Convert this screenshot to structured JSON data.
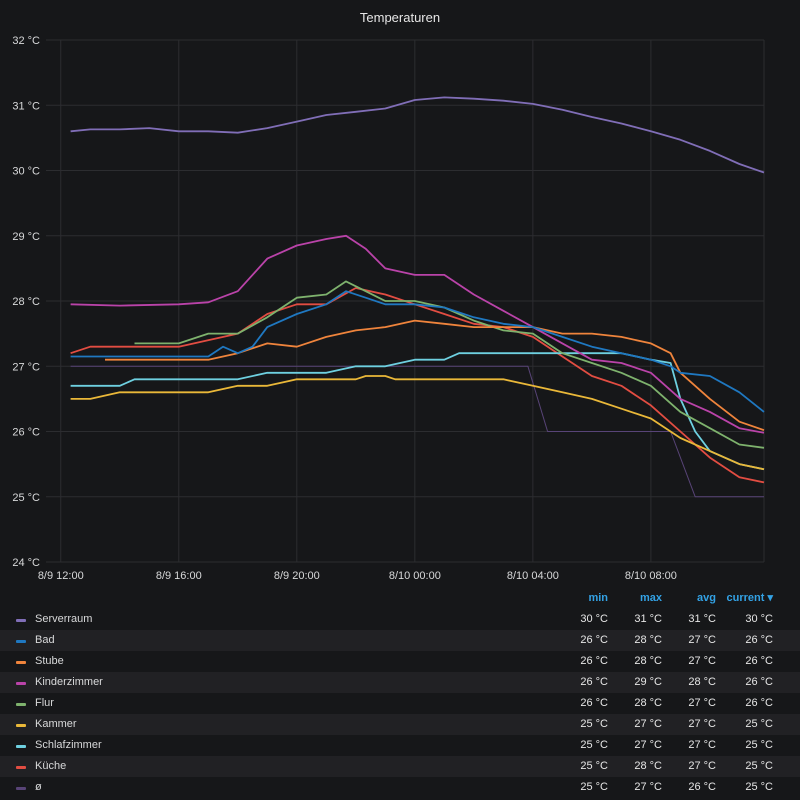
{
  "chart_data": {
    "type": "line",
    "title": "Temperaturen",
    "unit": "°C",
    "x_range": [
      "2023-08-09T11:30",
      "2023-08-10T11:50"
    ],
    "ylim": [
      24,
      32
    ],
    "y_ticks": [
      "24 °C",
      "25 °C",
      "26 °C",
      "27 °C",
      "28 °C",
      "29 °C",
      "30 °C",
      "31 °C",
      "32 °C"
    ],
    "x_ticks": [
      {
        "t": "2023-08-09T12:00",
        "label": "8/9 12:00"
      },
      {
        "t": "2023-08-09T16:00",
        "label": "8/9 16:00"
      },
      {
        "t": "2023-08-09T20:00",
        "label": "8/9 20:00"
      },
      {
        "t": "2023-08-10T00:00",
        "label": "8/10 00:00"
      },
      {
        "t": "2023-08-10T04:00",
        "label": "8/10 04:00"
      },
      {
        "t": "2023-08-10T08:00",
        "label": "8/10 08:00"
      }
    ],
    "grid": true,
    "legend_placement": "bottom-table",
    "legend_columns": [
      "min",
      "max",
      "avg",
      "current ▾"
    ],
    "series": [
      {
        "name": "Serverraum",
        "color": "#806eb7",
        "min": "30 °C",
        "max": "31 °C",
        "avg": "31 °C",
        "current": "30 °C",
        "points": [
          [
            "2023-08-09T12:20",
            30.6
          ],
          [
            "2023-08-09T13:00",
            30.63
          ],
          [
            "2023-08-09T14:00",
            30.63
          ],
          [
            "2023-08-09T15:00",
            30.65
          ],
          [
            "2023-08-09T16:00",
            30.6
          ],
          [
            "2023-08-09T17:00",
            30.6
          ],
          [
            "2023-08-09T18:00",
            30.58
          ],
          [
            "2023-08-09T19:00",
            30.65
          ],
          [
            "2023-08-09T20:00",
            30.75
          ],
          [
            "2023-08-09T21:00",
            30.85
          ],
          [
            "2023-08-09T22:00",
            30.9
          ],
          [
            "2023-08-09T23:00",
            30.95
          ],
          [
            "2023-08-10T00:00",
            31.08
          ],
          [
            "2023-08-10T01:00",
            31.12
          ],
          [
            "2023-08-10T02:00",
            31.1
          ],
          [
            "2023-08-10T03:00",
            31.07
          ],
          [
            "2023-08-10T04:00",
            31.02
          ],
          [
            "2023-08-10T05:00",
            30.93
          ],
          [
            "2023-08-10T06:00",
            30.82
          ],
          [
            "2023-08-10T07:00",
            30.72
          ],
          [
            "2023-08-10T08:00",
            30.6
          ],
          [
            "2023-08-10T09:00",
            30.47
          ],
          [
            "2023-08-10T10:00",
            30.3
          ],
          [
            "2023-08-10T11:00",
            30.1
          ],
          [
            "2023-08-10T11:50",
            29.97
          ]
        ]
      },
      {
        "name": "Bad",
        "color": "#1f78c1",
        "min": "26 °C",
        "max": "28 °C",
        "avg": "27 °C",
        "current": "26 °C",
        "points": [
          [
            "2023-08-09T12:20",
            27.15
          ],
          [
            "2023-08-09T14:00",
            27.15
          ],
          [
            "2023-08-09T17:00",
            27.15
          ],
          [
            "2023-08-09T17:30",
            27.3
          ],
          [
            "2023-08-09T18:00",
            27.2
          ],
          [
            "2023-08-09T18:30",
            27.3
          ],
          [
            "2023-08-09T19:00",
            27.6
          ],
          [
            "2023-08-09T20:00",
            27.8
          ],
          [
            "2023-08-09T21:00",
            27.95
          ],
          [
            "2023-08-09T21:40",
            28.15
          ],
          [
            "2023-08-09T22:20",
            28.05
          ],
          [
            "2023-08-09T23:00",
            27.95
          ],
          [
            "2023-08-10T00:00",
            27.95
          ],
          [
            "2023-08-10T01:00",
            27.9
          ],
          [
            "2023-08-10T02:00",
            27.75
          ],
          [
            "2023-08-10T03:00",
            27.65
          ],
          [
            "2023-08-10T04:00",
            27.6
          ],
          [
            "2023-08-10T05:00",
            27.45
          ],
          [
            "2023-08-10T06:00",
            27.3
          ],
          [
            "2023-08-10T07:00",
            27.2
          ],
          [
            "2023-08-10T08:00",
            27.1
          ],
          [
            "2023-08-10T08:40",
            27.0
          ],
          [
            "2023-08-10T09:00",
            26.9
          ],
          [
            "2023-08-10T10:00",
            26.85
          ],
          [
            "2023-08-10T11:00",
            26.6
          ],
          [
            "2023-08-10T11:50",
            26.3
          ]
        ]
      },
      {
        "name": "Stube",
        "color": "#ef843c",
        "min": "26 °C",
        "max": "28 °C",
        "avg": "27 °C",
        "current": "26 °C",
        "points": [
          [
            "2023-08-09T13:30",
            27.1
          ],
          [
            "2023-08-09T17:00",
            27.1
          ],
          [
            "2023-08-09T18:00",
            27.2
          ],
          [
            "2023-08-09T19:00",
            27.35
          ],
          [
            "2023-08-09T20:00",
            27.3
          ],
          [
            "2023-08-09T21:00",
            27.45
          ],
          [
            "2023-08-09T22:00",
            27.55
          ],
          [
            "2023-08-09T23:00",
            27.6
          ],
          [
            "2023-08-10T00:00",
            27.7
          ],
          [
            "2023-08-10T01:00",
            27.65
          ],
          [
            "2023-08-10T02:00",
            27.6
          ],
          [
            "2023-08-10T03:00",
            27.6
          ],
          [
            "2023-08-10T04:00",
            27.6
          ],
          [
            "2023-08-10T05:00",
            27.5
          ],
          [
            "2023-08-10T06:00",
            27.5
          ],
          [
            "2023-08-10T07:00",
            27.45
          ],
          [
            "2023-08-10T08:00",
            27.35
          ],
          [
            "2023-08-10T08:40",
            27.2
          ],
          [
            "2023-08-10T09:00",
            26.9
          ],
          [
            "2023-08-10T10:00",
            26.5
          ],
          [
            "2023-08-10T11:00",
            26.15
          ],
          [
            "2023-08-10T11:50",
            26.02
          ]
        ]
      },
      {
        "name": "Kinderzimmer",
        "color": "#ba43a9",
        "min": "26 °C",
        "max": "29 °C",
        "avg": "28 °C",
        "current": "26 °C",
        "points": [
          [
            "2023-08-09T12:20",
            27.95
          ],
          [
            "2023-08-09T14:00",
            27.93
          ],
          [
            "2023-08-09T16:00",
            27.95
          ],
          [
            "2023-08-09T17:00",
            27.98
          ],
          [
            "2023-08-09T18:00",
            28.15
          ],
          [
            "2023-08-09T19:00",
            28.65
          ],
          [
            "2023-08-09T20:00",
            28.85
          ],
          [
            "2023-08-09T21:00",
            28.95
          ],
          [
            "2023-08-09T21:40",
            29.0
          ],
          [
            "2023-08-09T22:20",
            28.8
          ],
          [
            "2023-08-09T23:00",
            28.5
          ],
          [
            "2023-08-10T00:00",
            28.4
          ],
          [
            "2023-08-10T01:00",
            28.4
          ],
          [
            "2023-08-10T02:00",
            28.1
          ],
          [
            "2023-08-10T03:00",
            27.85
          ],
          [
            "2023-08-10T04:00",
            27.6
          ],
          [
            "2023-08-10T05:00",
            27.35
          ],
          [
            "2023-08-10T06:00",
            27.1
          ],
          [
            "2023-08-10T07:00",
            27.05
          ],
          [
            "2023-08-10T08:00",
            26.9
          ],
          [
            "2023-08-10T09:00",
            26.5
          ],
          [
            "2023-08-10T10:00",
            26.3
          ],
          [
            "2023-08-10T11:00",
            26.05
          ],
          [
            "2023-08-10T11:50",
            25.98
          ]
        ]
      },
      {
        "name": "Flur",
        "color": "#7eb26d",
        "min": "26 °C",
        "max": "28 °C",
        "avg": "27 °C",
        "current": "26 °C",
        "points": [
          [
            "2023-08-09T14:30",
            27.35
          ],
          [
            "2023-08-09T16:00",
            27.35
          ],
          [
            "2023-08-09T17:00",
            27.5
          ],
          [
            "2023-08-09T18:00",
            27.5
          ],
          [
            "2023-08-09T19:00",
            27.75
          ],
          [
            "2023-08-09T20:00",
            28.05
          ],
          [
            "2023-08-09T21:00",
            28.1
          ],
          [
            "2023-08-09T21:40",
            28.3
          ],
          [
            "2023-08-09T22:20",
            28.15
          ],
          [
            "2023-08-09T23:00",
            28.0
          ],
          [
            "2023-08-10T00:00",
            28.0
          ],
          [
            "2023-08-10T01:00",
            27.9
          ],
          [
            "2023-08-10T02:00",
            27.7
          ],
          [
            "2023-08-10T03:00",
            27.55
          ],
          [
            "2023-08-10T04:00",
            27.5
          ],
          [
            "2023-08-10T05:00",
            27.2
          ],
          [
            "2023-08-10T06:00",
            27.05
          ],
          [
            "2023-08-10T07:00",
            26.9
          ],
          [
            "2023-08-10T08:00",
            26.7
          ],
          [
            "2023-08-10T09:00",
            26.3
          ],
          [
            "2023-08-10T10:00",
            26.05
          ],
          [
            "2023-08-10T11:00",
            25.8
          ],
          [
            "2023-08-10T11:50",
            25.75
          ]
        ]
      },
      {
        "name": "Kammer",
        "color": "#eab839",
        "min": "25 °C",
        "max": "27 °C",
        "avg": "27 °C",
        "current": "25 °C",
        "points": [
          [
            "2023-08-09T12:20",
            26.5
          ],
          [
            "2023-08-09T13:00",
            26.5
          ],
          [
            "2023-08-09T14:00",
            26.6
          ],
          [
            "2023-08-09T16:00",
            26.6
          ],
          [
            "2023-08-09T17:00",
            26.6
          ],
          [
            "2023-08-09T18:00",
            26.7
          ],
          [
            "2023-08-09T19:00",
            26.7
          ],
          [
            "2023-08-09T20:00",
            26.8
          ],
          [
            "2023-08-09T22:00",
            26.8
          ],
          [
            "2023-08-09T22:20",
            26.85
          ],
          [
            "2023-08-09T23:00",
            26.85
          ],
          [
            "2023-08-09T23:20",
            26.8
          ],
          [
            "2023-08-10T02:00",
            26.8
          ],
          [
            "2023-08-10T03:00",
            26.8
          ],
          [
            "2023-08-10T04:00",
            26.7
          ],
          [
            "2023-08-10T05:00",
            26.6
          ],
          [
            "2023-08-10T06:00",
            26.5
          ],
          [
            "2023-08-10T07:00",
            26.35
          ],
          [
            "2023-08-10T08:00",
            26.2
          ],
          [
            "2023-08-10T09:00",
            25.9
          ],
          [
            "2023-08-10T10:00",
            25.7
          ],
          [
            "2023-08-10T11:00",
            25.5
          ],
          [
            "2023-08-10T11:50",
            25.42
          ]
        ]
      },
      {
        "name": "Schlafzimmer",
        "color": "#6ed0e0",
        "min": "25 °C",
        "max": "27 °C",
        "avg": "27 °C",
        "current": "25 °C",
        "points": [
          [
            "2023-08-09T12:20",
            26.7
          ],
          [
            "2023-08-09T14:00",
            26.7
          ],
          [
            "2023-08-09T14:30",
            26.8
          ],
          [
            "2023-08-09T18:00",
            26.8
          ],
          [
            "2023-08-09T19:00",
            26.9
          ],
          [
            "2023-08-09T21:00",
            26.9
          ],
          [
            "2023-08-09T22:00",
            27.0
          ],
          [
            "2023-08-09T23:00",
            27.0
          ],
          [
            "2023-08-10T00:00",
            27.1
          ],
          [
            "2023-08-10T01:00",
            27.1
          ],
          [
            "2023-08-10T01:30",
            27.2
          ],
          [
            "2023-08-10T04:00",
            27.2
          ],
          [
            "2023-08-10T07:00",
            27.2
          ],
          [
            "2023-08-10T08:00",
            27.1
          ],
          [
            "2023-08-10T08:40",
            27.05
          ],
          [
            "2023-08-10T09:00",
            26.5
          ],
          [
            "2023-08-10T09:30",
            26.0
          ],
          [
            "2023-08-10T10:00",
            25.7
          ],
          [
            "2023-08-10T11:00",
            25.5
          ],
          [
            "2023-08-10T11:50",
            25.42
          ]
        ]
      },
      {
        "name": "Küche",
        "color": "#e24d42",
        "min": "25 °C",
        "max": "28 °C",
        "avg": "27 °C",
        "current": "25 °C",
        "points": [
          [
            "2023-08-09T12:20",
            27.2
          ],
          [
            "2023-08-09T13:00",
            27.3
          ],
          [
            "2023-08-09T16:00",
            27.3
          ],
          [
            "2023-08-09T18:00",
            27.5
          ],
          [
            "2023-08-09T19:00",
            27.8
          ],
          [
            "2023-08-09T20:00",
            27.95
          ],
          [
            "2023-08-09T21:00",
            27.95
          ],
          [
            "2023-08-09T22:00",
            28.2
          ],
          [
            "2023-08-09T23:00",
            28.1
          ],
          [
            "2023-08-10T00:00",
            27.95
          ],
          [
            "2023-08-10T01:00",
            27.8
          ],
          [
            "2023-08-10T02:00",
            27.65
          ],
          [
            "2023-08-10T03:00",
            27.6
          ],
          [
            "2023-08-10T04:00",
            27.45
          ],
          [
            "2023-08-10T05:00",
            27.15
          ],
          [
            "2023-08-10T06:00",
            26.85
          ],
          [
            "2023-08-10T07:00",
            26.7
          ],
          [
            "2023-08-10T08:00",
            26.4
          ],
          [
            "2023-08-10T09:00",
            26.0
          ],
          [
            "2023-08-10T10:00",
            25.6
          ],
          [
            "2023-08-10T11:00",
            25.3
          ],
          [
            "2023-08-10T11:50",
            25.22
          ]
        ]
      },
      {
        "name": "ø",
        "color": "#584477",
        "min": "25 °C",
        "max": "27 °C",
        "avg": "26 °C",
        "current": "25 °C",
        "points": [
          [
            "2023-08-09T12:20",
            27.0
          ],
          [
            "2023-08-10T03:50",
            27.0
          ],
          [
            "2023-08-10T04:30",
            26.0
          ],
          [
            "2023-08-10T08:40",
            26.0
          ],
          [
            "2023-08-10T09:30",
            25.0
          ],
          [
            "2023-08-10T11:50",
            25.0
          ]
        ]
      }
    ]
  }
}
